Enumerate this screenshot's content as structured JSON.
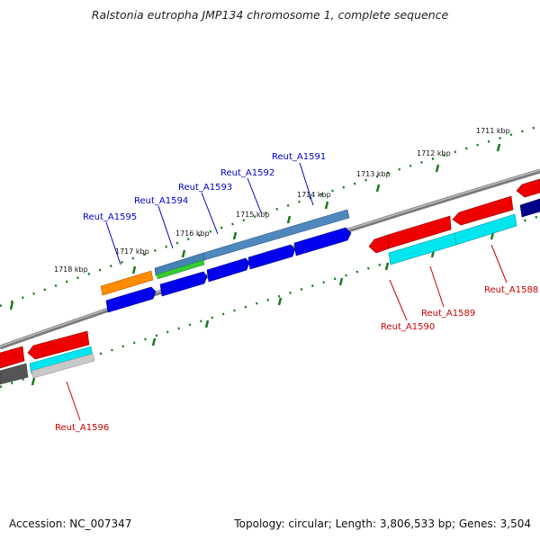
{
  "title": "Ralstonia eutropha JMP134 chromosome 1, complete sequence",
  "footer": {
    "accession_label": "Accession:",
    "accession": "NC_007347",
    "topology_text": "Topology: circular; Length: 3,806,533 bp; Genes: 3,504"
  },
  "ticks": [
    {
      "label": "1711 kbp"
    },
    {
      "label": "1712 kbp"
    },
    {
      "label": "1713 kbp"
    },
    {
      "label": "1714 kbp"
    },
    {
      "label": "1715 kbp"
    },
    {
      "label": "1716 kbp"
    },
    {
      "label": "1717 kbp"
    },
    {
      "label": "1718 kbp"
    }
  ],
  "genes": [
    {
      "label": "Reut_A1591",
      "color": "#0000cc"
    },
    {
      "label": "Reut_A1592",
      "color": "#0000cc"
    },
    {
      "label": "Reut_A1593",
      "color": "#0000cc"
    },
    {
      "label": "Reut_A1594",
      "color": "#0000cc"
    },
    {
      "label": "Reut_A1595",
      "color": "#0000cc"
    },
    {
      "label": "Reut_A1590",
      "color": "#cc0000"
    },
    {
      "label": "Reut_A1589",
      "color": "#cc0000"
    },
    {
      "label": "Reut_A1588",
      "color": "#cc0000"
    },
    {
      "label": "Reut_A1596",
      "color": "#cc0000"
    }
  ],
  "colors": {
    "forward_cds": "#0000ee",
    "reverse_cds": "#ee0000",
    "trna_like": "#00e5ee",
    "rrna_like": "#4682b4",
    "misc": "#ff8c00",
    "green": "#33cc33",
    "backbone": "#808080",
    "tick": "#1a7a1a"
  }
}
